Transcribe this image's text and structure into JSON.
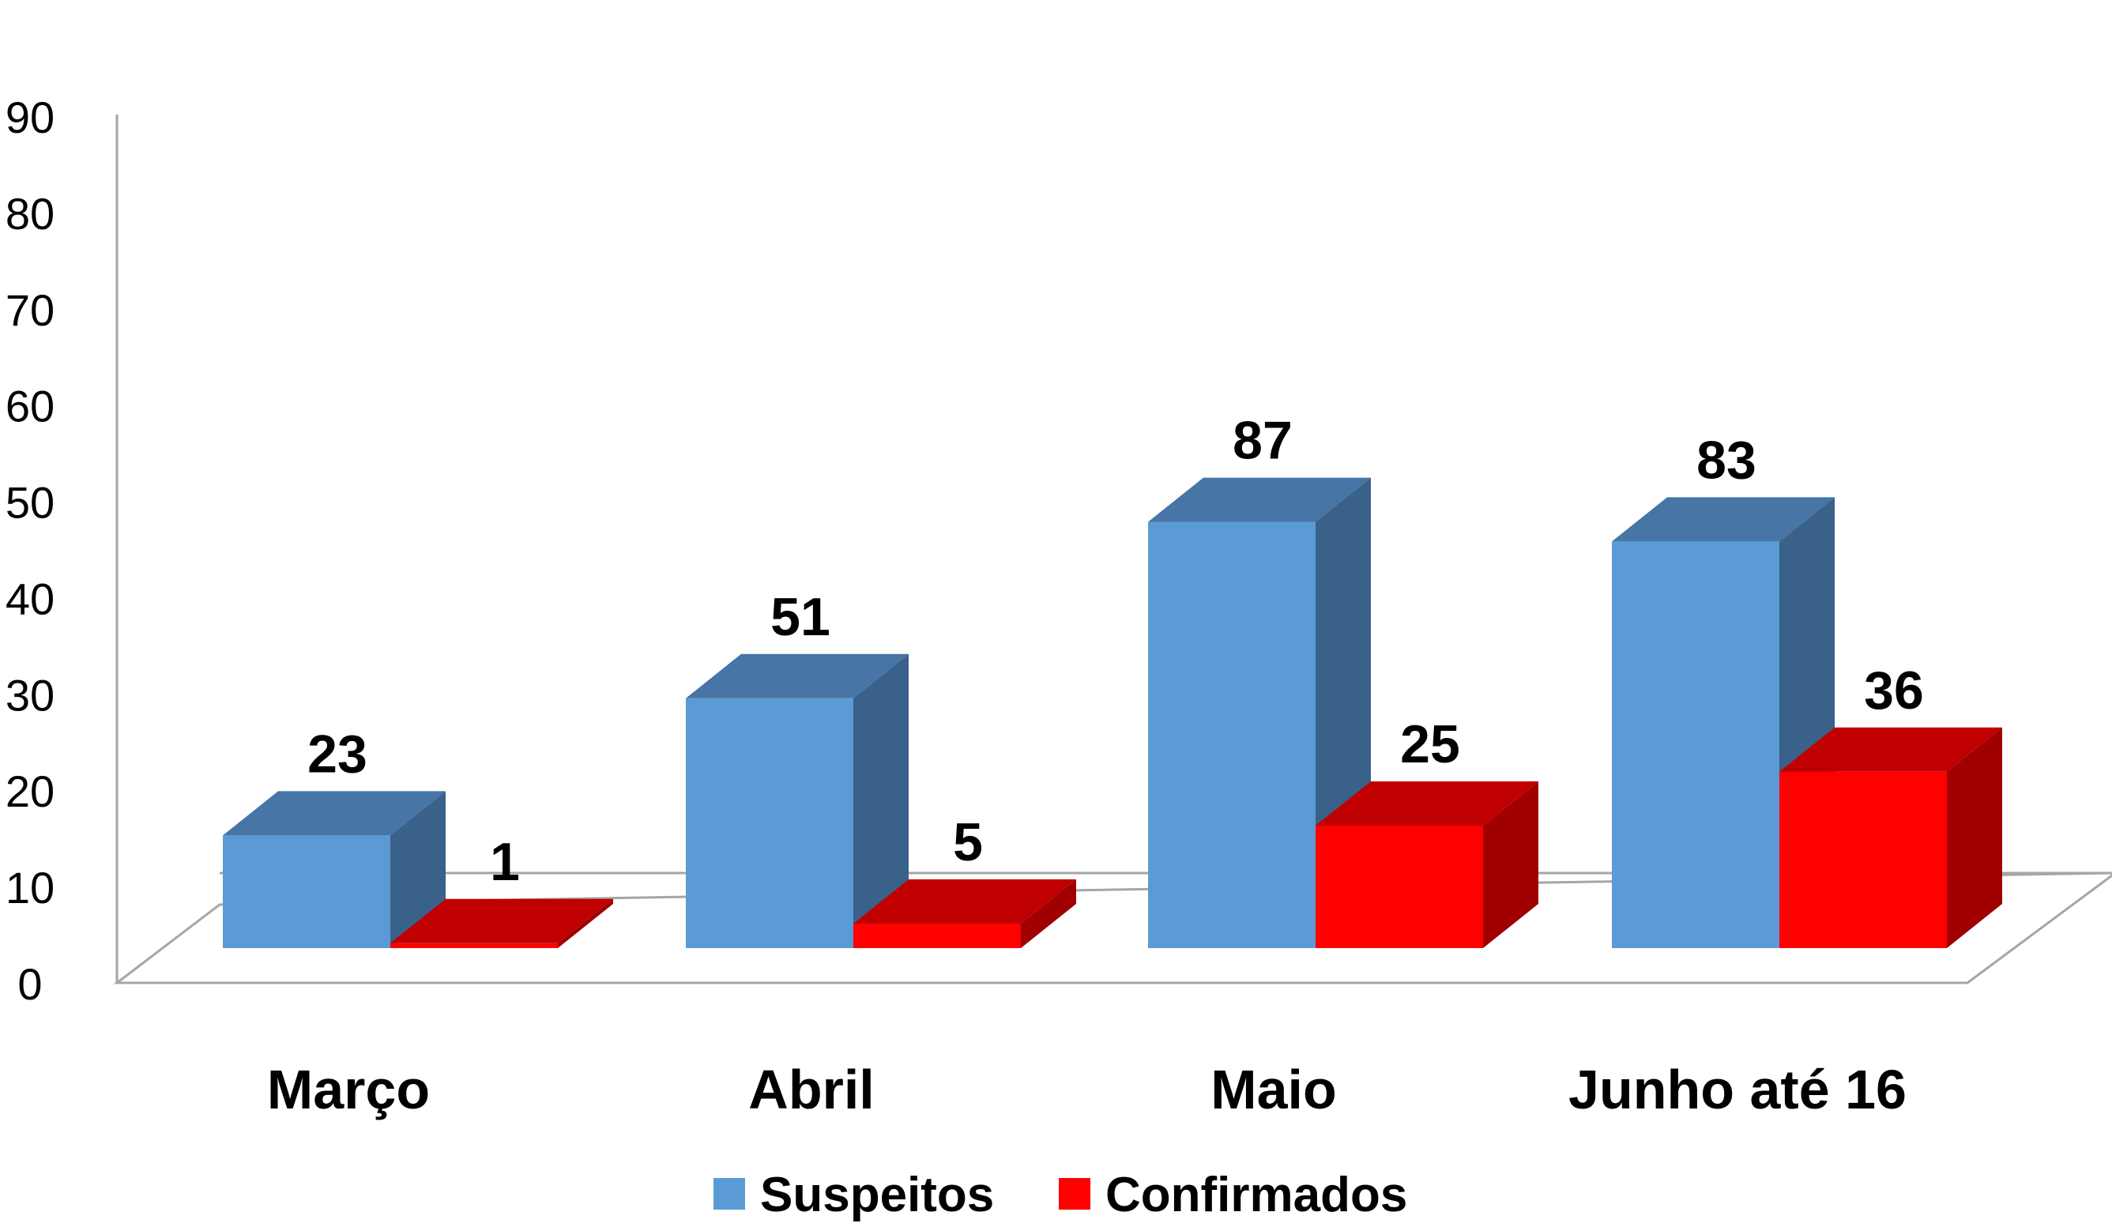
{
  "chart_data": {
    "type": "bar",
    "categories": [
      "Março",
      "Abril",
      "Maio",
      "Junho até 16"
    ],
    "series": [
      {
        "name": "Suspeitos",
        "values": [
          23,
          51,
          87,
          83
        ],
        "color": "#5B9BD5"
      },
      {
        "name": "Confirmados",
        "values": [
          1,
          5,
          25,
          36
        ],
        "color": "#FF0000"
      }
    ],
    "ylim": [
      0,
      90
    ],
    "yticks": [
      "0",
      "10",
      "20",
      "30",
      "40",
      "50",
      "60",
      "70",
      "80",
      "90"
    ],
    "data_labels": true,
    "legend_position": "bottom",
    "grid": false,
    "style": "3d-column",
    "title": "",
    "xlabel": "",
    "ylabel": ""
  }
}
